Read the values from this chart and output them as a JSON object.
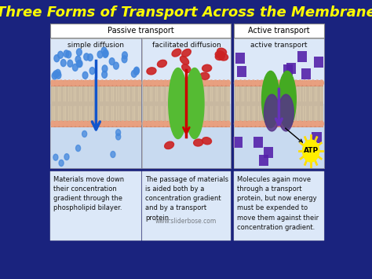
{
  "title": "Three Forms of Transport Across the Membrane",
  "title_color": "#FFFF00",
  "title_fontsize": 13,
  "bg_color": "#1a237e",
  "panel_bg_top": "#e8f0fa",
  "panel_bg_bot": "#c8daf5",
  "sections": [
    {
      "label": "simple diffusion",
      "col": 0,
      "text": "Materials move down\ntheir concentration\ngradient through the\nphospholipid bilayer.",
      "particle_color": "#4488dd",
      "arrow_color": "#1155cc",
      "type": "simple"
    },
    {
      "label": "facilitated diffusion",
      "col": 1,
      "text": "The passage of materials\nis aided both by a\nconcentration gradient\nand by a transport\nprotein.",
      "particle_color": "#cc2222",
      "arrow_color": "#cc0000",
      "type": "facilitated"
    },
    {
      "label": "active transport",
      "col": 2,
      "text": "Molecules again move\nthrough a transport\nprotein, but now energy\nmust be expended to\nmove them against their\nconcentration gradient.",
      "particle_color": "#5522aa",
      "arrow_color": "#6633bb",
      "type": "active"
    }
  ],
  "passive_label": "Passive transport",
  "active_label": "Active transport",
  "watermark": "www.sliderbose.com",
  "head_color": "#d4896a",
  "tail_color": "#c8b8a0",
  "protein_green": "#55bb33",
  "protein_green_active": "#44aa22",
  "protein_purple": "#553388"
}
